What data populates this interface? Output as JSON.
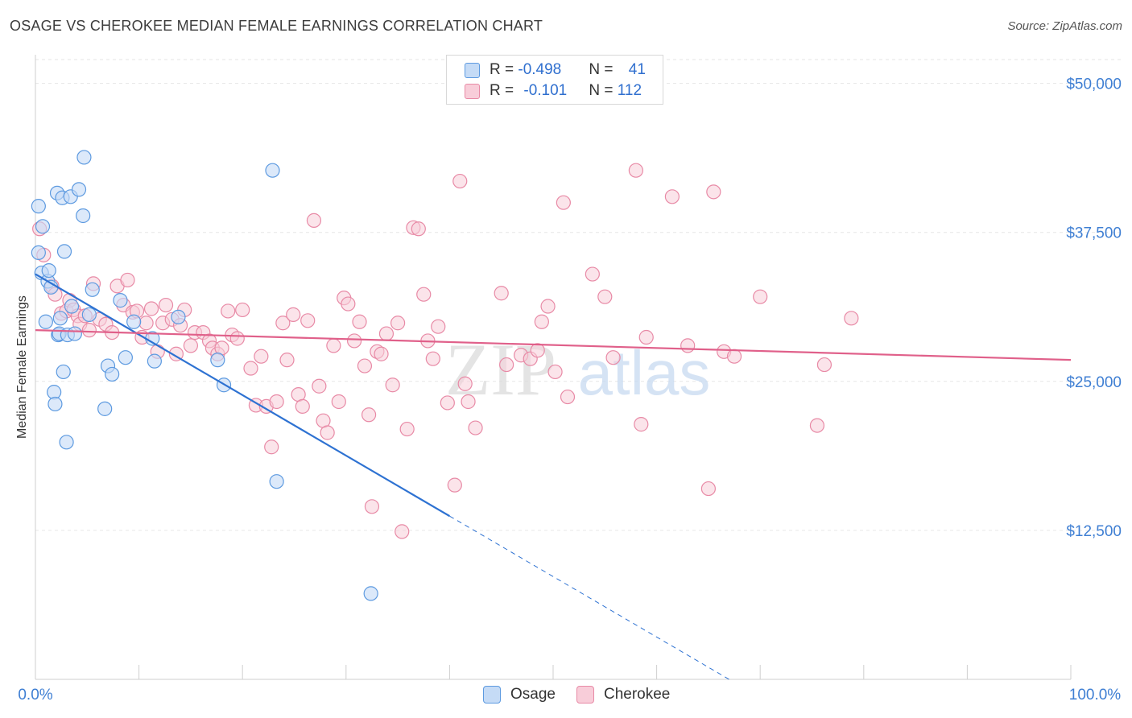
{
  "header": {
    "title": "OSAGE VS CHEROKEE MEDIAN FEMALE EARNINGS CORRELATION CHART",
    "source": "Source: ZipAtlas.com"
  },
  "legend": {
    "osage": {
      "r_label": "R = ",
      "r_value": "-0.498",
      "n_label": "N = ",
      "n_value": "41"
    },
    "cherokee": {
      "r_label": "R = ",
      "r_value": "-0.101",
      "n_label": "N = ",
      "n_value": "112"
    }
  },
  "watermark": {
    "zip": "ZIP",
    "atlas": "atlas"
  },
  "colors": {
    "osage_fill": "#c5dbf6",
    "osage_stroke": "#5d9ae0",
    "osage_line": "#2e72d2",
    "cherokee_fill": "#f8cdd9",
    "cherokee_stroke": "#e88aa6",
    "cherokee_line": "#e0608a",
    "tick_label": "#3f7fd3",
    "grid": "#e6e6e6"
  },
  "chart_data": {
    "type": "scatter",
    "title": "OSAGE VS CHEROKEE MEDIAN FEMALE EARNINGS CORRELATION CHART",
    "xlabel": "",
    "ylabel": "Median Female Earnings",
    "xlim": [
      0,
      100
    ],
    "ylim": [
      0,
      52000
    ],
    "x_tick_labels": [
      "0.0%",
      "100.0%"
    ],
    "y_ticks": [
      12500,
      25000,
      37500,
      50000
    ],
    "y_tick_labels": [
      "$12,500",
      "$25,000",
      "$37,500",
      "$50,000"
    ],
    "series": [
      {
        "name": "Osage",
        "r": -0.498,
        "n": 41,
        "trend": {
          "x0": 0,
          "y0": 34000,
          "x1": 40,
          "y1": 13700,
          "dash_to_x": 67,
          "dash_to_y": 0
        },
        "points": [
          [
            0.3,
            39700
          ],
          [
            0.3,
            35800
          ],
          [
            0.6,
            34100
          ],
          [
            0.7,
            38000
          ],
          [
            1.0,
            30000
          ],
          [
            1.2,
            33400
          ],
          [
            1.3,
            34300
          ],
          [
            1.5,
            32900
          ],
          [
            1.8,
            24100
          ],
          [
            1.9,
            23100
          ],
          [
            2.1,
            40800
          ],
          [
            2.2,
            28900
          ],
          [
            2.3,
            29000
          ],
          [
            2.4,
            30300
          ],
          [
            2.6,
            40400
          ],
          [
            2.7,
            25800
          ],
          [
            2.8,
            35900
          ],
          [
            3.0,
            19900
          ],
          [
            3.1,
            28900
          ],
          [
            3.4,
            40500
          ],
          [
            3.5,
            31300
          ],
          [
            3.8,
            29000
          ],
          [
            4.2,
            41100
          ],
          [
            4.6,
            38900
          ],
          [
            4.7,
            43800
          ],
          [
            5.2,
            30600
          ],
          [
            5.5,
            32700
          ],
          [
            6.7,
            22700
          ],
          [
            7.0,
            26300
          ],
          [
            7.4,
            25600
          ],
          [
            8.2,
            31800
          ],
          [
            8.7,
            27000
          ],
          [
            9.5,
            30000
          ],
          [
            11.3,
            28600
          ],
          [
            11.5,
            26700
          ],
          [
            13.8,
            30400
          ],
          [
            17.6,
            26800
          ],
          [
            18.2,
            24700
          ],
          [
            22.9,
            42700
          ],
          [
            23.3,
            16600
          ],
          [
            32.4,
            7200
          ]
        ]
      },
      {
        "name": "Cherokee",
        "r": -0.101,
        "n": 112,
        "trend": {
          "x0": 0,
          "y0": 29300,
          "x1": 100,
          "y1": 26800
        },
        "points": [
          [
            0.4,
            37800
          ],
          [
            0.8,
            35600
          ],
          [
            1.6,
            33000
          ],
          [
            1.9,
            32300
          ],
          [
            2.5,
            30700
          ],
          [
            3.0,
            30900
          ],
          [
            3.3,
            31800
          ],
          [
            3.7,
            31000
          ],
          [
            4.1,
            30500
          ],
          [
            4.3,
            29800
          ],
          [
            4.8,
            30500
          ],
          [
            5.2,
            29300
          ],
          [
            5.6,
            33200
          ],
          [
            6.2,
            30200
          ],
          [
            6.8,
            29800
          ],
          [
            7.4,
            29100
          ],
          [
            7.9,
            33000
          ],
          [
            8.5,
            31400
          ],
          [
            8.9,
            33500
          ],
          [
            9.4,
            30800
          ],
          [
            9.8,
            30900
          ],
          [
            10.3,
            28700
          ],
          [
            10.7,
            29900
          ],
          [
            11.2,
            31100
          ],
          [
            11.8,
            27500
          ],
          [
            12.3,
            29900
          ],
          [
            12.6,
            31400
          ],
          [
            13.2,
            30200
          ],
          [
            13.6,
            27300
          ],
          [
            14.0,
            29700
          ],
          [
            14.4,
            31000
          ],
          [
            15.0,
            28000
          ],
          [
            15.4,
            29100
          ],
          [
            16.2,
            29100
          ],
          [
            16.8,
            28400
          ],
          [
            17.1,
            27800
          ],
          [
            17.6,
            27300
          ],
          [
            18.0,
            27800
          ],
          [
            18.6,
            30900
          ],
          [
            19.0,
            28900
          ],
          [
            19.5,
            28600
          ],
          [
            20.0,
            31000
          ],
          [
            20.8,
            26100
          ],
          [
            21.3,
            23000
          ],
          [
            21.8,
            27100
          ],
          [
            22.3,
            22900
          ],
          [
            22.8,
            19500
          ],
          [
            23.3,
            23300
          ],
          [
            23.9,
            29900
          ],
          [
            24.3,
            26800
          ],
          [
            24.9,
            30600
          ],
          [
            25.4,
            23900
          ],
          [
            25.8,
            22900
          ],
          [
            26.3,
            30100
          ],
          [
            26.9,
            38500
          ],
          [
            27.4,
            24600
          ],
          [
            27.8,
            21700
          ],
          [
            28.2,
            20700
          ],
          [
            28.8,
            28000
          ],
          [
            29.3,
            23300
          ],
          [
            29.8,
            32000
          ],
          [
            30.2,
            31500
          ],
          [
            30.8,
            28400
          ],
          [
            31.3,
            30000
          ],
          [
            31.8,
            26300
          ],
          [
            32.2,
            22200
          ],
          [
            32.5,
            14500
          ],
          [
            33.0,
            27500
          ],
          [
            33.4,
            27300
          ],
          [
            33.9,
            29000
          ],
          [
            34.5,
            24700
          ],
          [
            35.0,
            29900
          ],
          [
            35.4,
            12400
          ],
          [
            35.9,
            21000
          ],
          [
            36.5,
            37900
          ],
          [
            37.0,
            37800
          ],
          [
            37.5,
            32300
          ],
          [
            37.9,
            28400
          ],
          [
            38.4,
            26900
          ],
          [
            38.9,
            29600
          ],
          [
            39.8,
            23200
          ],
          [
            40.5,
            16300
          ],
          [
            41.0,
            41800
          ],
          [
            41.5,
            24800
          ],
          [
            41.8,
            23300
          ],
          [
            42.5,
            21100
          ],
          [
            45.0,
            32400
          ],
          [
            45.5,
            26400
          ],
          [
            46.9,
            27200
          ],
          [
            47.8,
            26900
          ],
          [
            48.5,
            27600
          ],
          [
            48.9,
            30000
          ],
          [
            49.5,
            31300
          ],
          [
            50.2,
            25800
          ],
          [
            51.0,
            40000
          ],
          [
            51.4,
            23700
          ],
          [
            53.8,
            34000
          ],
          [
            55.0,
            32100
          ],
          [
            55.8,
            27000
          ],
          [
            58.0,
            42700
          ],
          [
            58.5,
            21400
          ],
          [
            59.0,
            28700
          ],
          [
            61.5,
            40500
          ],
          [
            63.0,
            28000
          ],
          [
            65.0,
            16000
          ],
          [
            65.5,
            40900
          ],
          [
            66.5,
            27500
          ],
          [
            67.5,
            27100
          ],
          [
            70.0,
            32100
          ],
          [
            75.5,
            21300
          ],
          [
            76.2,
            26400
          ],
          [
            78.8,
            30300
          ]
        ]
      }
    ]
  }
}
